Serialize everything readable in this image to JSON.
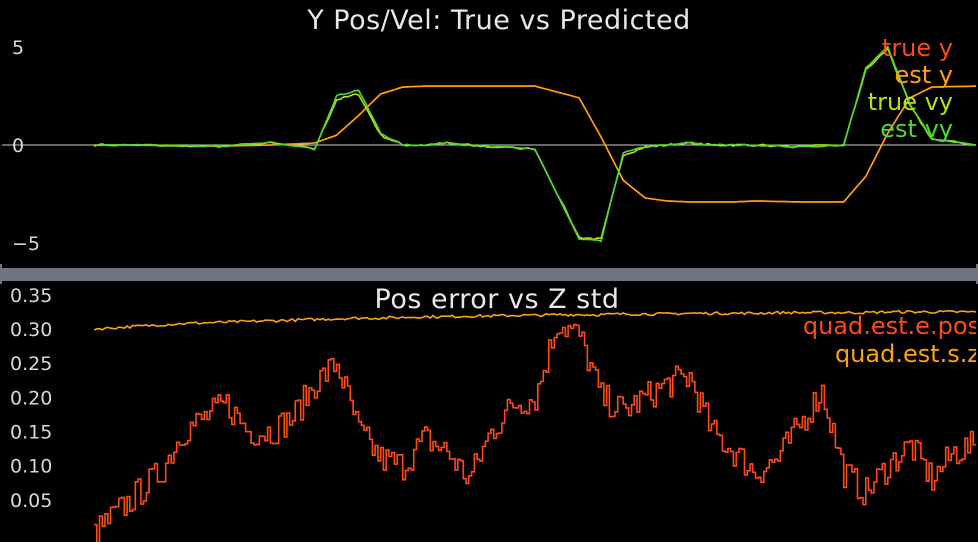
{
  "charts": {
    "top": {
      "title": "Y Pos/Vel: True vs Predicted",
      "y_ticks": [
        {
          "value": 5,
          "label": "5"
        },
        {
          "value": 0,
          "label": "0"
        },
        {
          "value": -5,
          "label": "−5"
        }
      ],
      "legend": [
        {
          "label": "true y",
          "color": "#ff4a14"
        },
        {
          "label": "est y",
          "color": "#ffa010"
        },
        {
          "label": "true vy",
          "color": "#b4e014"
        },
        {
          "label": "est vy",
          "color": "#50d830"
        }
      ]
    },
    "bottom": {
      "title": "Pos error vs Z std",
      "y_ticks": [
        {
          "value": 0.35,
          "label": "0.35"
        },
        {
          "value": 0.3,
          "label": "0.30"
        },
        {
          "value": 0.25,
          "label": "0.25"
        },
        {
          "value": 0.2,
          "label": "0.20"
        },
        {
          "value": 0.15,
          "label": "0.15"
        },
        {
          "value": 0.1,
          "label": "0.10"
        },
        {
          "value": 0.05,
          "label": "0.05"
        }
      ],
      "legend": [
        {
          "label": "quad.est.e.pos",
          "color": "#ff4a14"
        },
        {
          "label": "quad.est.s.z",
          "color": "#ffa010"
        }
      ]
    }
  },
  "chart_data": [
    {
      "type": "line",
      "title": "Y Pos/Vel: True vs Predicted",
      "xlabel": "",
      "ylabel": "",
      "x": [
        0,
        1,
        2,
        3,
        4,
        5,
        5.5,
        6,
        6.5,
        7,
        7.5,
        8,
        8.5,
        9,
        10,
        11,
        11.5,
        12,
        12.5,
        13,
        13.5,
        14,
        14.5,
        15,
        16,
        17,
        17.5,
        18,
        18.5,
        19,
        20
      ],
      "ylim": [
        -5.5,
        5.5
      ],
      "grid": false,
      "legend_position": "top-right",
      "series": [
        {
          "name": "true y",
          "color": "#ff4a14",
          "values": [
            0,
            0,
            -0.05,
            -0.05,
            0,
            0.1,
            0.5,
            1.5,
            2.6,
            2.95,
            3.0,
            3.0,
            3.0,
            3.0,
            3.0,
            2.4,
            0.4,
            -1.8,
            -2.7,
            -2.85,
            -2.9,
            -2.9,
            -2.9,
            -2.85,
            -2.9,
            -2.9,
            -1.6,
            0.6,
            2.4,
            2.95,
            3.0
          ]
        },
        {
          "name": "est y",
          "color": "#ffa010",
          "values": [
            0,
            0,
            -0.05,
            -0.05,
            0,
            0.1,
            0.5,
            1.5,
            2.6,
            2.95,
            3.0,
            3.0,
            3.0,
            3.0,
            3.0,
            2.4,
            0.4,
            -1.8,
            -2.7,
            -2.85,
            -2.9,
            -2.9,
            -2.9,
            -2.85,
            -2.9,
            -2.9,
            -1.6,
            0.6,
            2.4,
            2.95,
            3.0
          ]
        },
        {
          "name": "true vy",
          "color": "#b4e014",
          "values": [
            0,
            0,
            -0.05,
            -0.05,
            0.1,
            -0.2,
            2.3,
            2.6,
            0.5,
            0,
            0,
            0.1,
            0,
            -0.1,
            -0.2,
            -4.7,
            -4.8,
            -0.5,
            -0.1,
            0,
            0.1,
            0,
            0,
            0,
            -0.1,
            0,
            3.8,
            4.9,
            2.0,
            0.3,
            0
          ]
        },
        {
          "name": "est vy",
          "color": "#50d830",
          "values": [
            0,
            0,
            -0.05,
            -0.05,
            0.1,
            -0.2,
            2.5,
            2.8,
            0.6,
            0,
            0,
            0.1,
            0,
            -0.1,
            -0.2,
            -4.8,
            -4.9,
            -0.4,
            -0.1,
            0,
            0.1,
            0,
            0,
            0,
            -0.1,
            0,
            3.9,
            5.0,
            2.1,
            0.3,
            0
          ]
        }
      ]
    },
    {
      "type": "line",
      "title": "Pos error vs Z std",
      "xlabel": "",
      "ylabel": "",
      "x": [
        0,
        0.5,
        1,
        1.5,
        2,
        2.5,
        3,
        3.5,
        4,
        4.5,
        5,
        5.5,
        6,
        6.5,
        7,
        7.5,
        8,
        8.5,
        9,
        9.5,
        10,
        10.5,
        11,
        11.5,
        12,
        12.5,
        13,
        13.5,
        14,
        14.5,
        15,
        15.5,
        16,
        16.5,
        17,
        17.5,
        18,
        18.5,
        19,
        19.5,
        20
      ],
      "ylim": [
        0,
        0.36
      ],
      "grid": false,
      "legend_position": "top-right",
      "series": [
        {
          "name": "quad.est.e.pos",
          "color": "#ff4a14",
          "values": [
            0.0,
            0.03,
            0.06,
            0.09,
            0.15,
            0.17,
            0.19,
            0.15,
            0.15,
            0.17,
            0.22,
            0.25,
            0.15,
            0.11,
            0.1,
            0.14,
            0.12,
            0.08,
            0.15,
            0.19,
            0.2,
            0.31,
            0.29,
            0.2,
            0.18,
            0.2,
            0.22,
            0.23,
            0.15,
            0.12,
            0.09,
            0.11,
            0.16,
            0.21,
            0.09,
            0.06,
            0.1,
            0.13,
            0.08,
            0.12,
            0.13
          ]
        },
        {
          "name": "quad.est.s.z",
          "color": "#ffa010",
          "values": [
            0.3,
            0.302,
            0.304,
            0.306,
            0.308,
            0.309,
            0.31,
            0.311,
            0.312,
            0.313,
            0.314,
            0.315,
            0.316,
            0.316,
            0.317,
            0.318,
            0.318,
            0.319,
            0.319,
            0.32,
            0.32,
            0.321,
            0.321,
            0.321,
            0.322,
            0.322,
            0.322,
            0.323,
            0.323,
            0.323,
            0.323,
            0.324,
            0.324,
            0.324,
            0.324,
            0.324,
            0.325,
            0.325,
            0.325,
            0.325,
            0.325
          ]
        }
      ]
    }
  ]
}
